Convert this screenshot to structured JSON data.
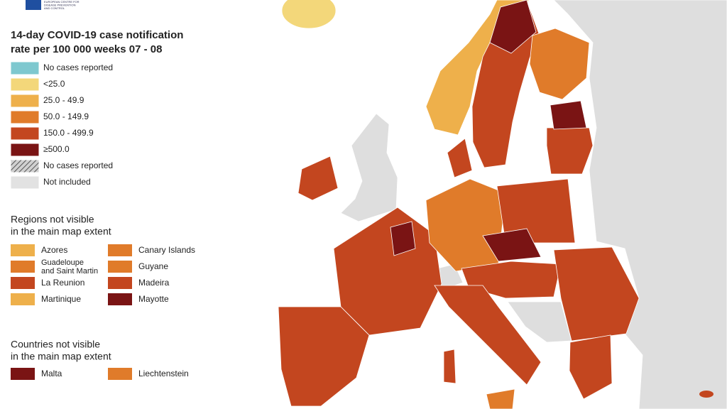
{
  "logo": {
    "text_lines": [
      "EUROPEAN CENTRE FOR",
      "DISEASE PREVENTION",
      "AND CONTROL"
    ]
  },
  "legend": {
    "title_lines": [
      "14-day COVID-19 case notification",
      "rate per 100 000 weeks  07 - 08"
    ],
    "items": [
      {
        "label": "No cases reported",
        "color": "#7ec8cf"
      },
      {
        "label": "<25.0",
        "color": "#f3d77a"
      },
      {
        "label": "25.0 - 49.9",
        "color": "#eeb04b"
      },
      {
        "label": "50.0 - 149.9",
        "color": "#e07b2a"
      },
      {
        "label": "150.0 - 499.9",
        "color": "#c3461f"
      },
      {
        "label": "≥500.0",
        "color": "#7a1414"
      },
      {
        "label": "No cases reported",
        "color": "#bdbdbd",
        "pattern": "hatch"
      },
      {
        "label": "Not included",
        "color": "#e2e2e2"
      }
    ]
  },
  "regions": {
    "heading_lines": [
      "Regions not visible",
      "in the main map extent"
    ],
    "columns": [
      [
        {
          "label_lines": [
            "Azores"
          ],
          "color": "#eeb04b"
        },
        {
          "label_lines": [
            "Guadeloupe",
            "and Saint Martin"
          ],
          "color": "#e07b2a"
        },
        {
          "label_lines": [
            "La Reunion"
          ],
          "color": "#c3461f"
        },
        {
          "label_lines": [
            "Martinique"
          ],
          "color": "#eeb04b"
        }
      ],
      [
        {
          "label_lines": [
            "Canary Islands"
          ],
          "color": "#e07b2a"
        },
        {
          "label_lines": [
            "Guyane"
          ],
          "color": "#e07b2a"
        },
        {
          "label_lines": [
            "Madeira"
          ],
          "color": "#c3461f"
        },
        {
          "label_lines": [
            "Mayotte"
          ],
          "color": "#7a1414"
        }
      ]
    ]
  },
  "countries": {
    "heading_lines": [
      "Countries not visible",
      "in the main map extent"
    ],
    "items": [
      {
        "label": "Malta",
        "color": "#7a1414"
      },
      {
        "label": "Liechtenstein",
        "color": "#e07b2a"
      }
    ]
  }
}
